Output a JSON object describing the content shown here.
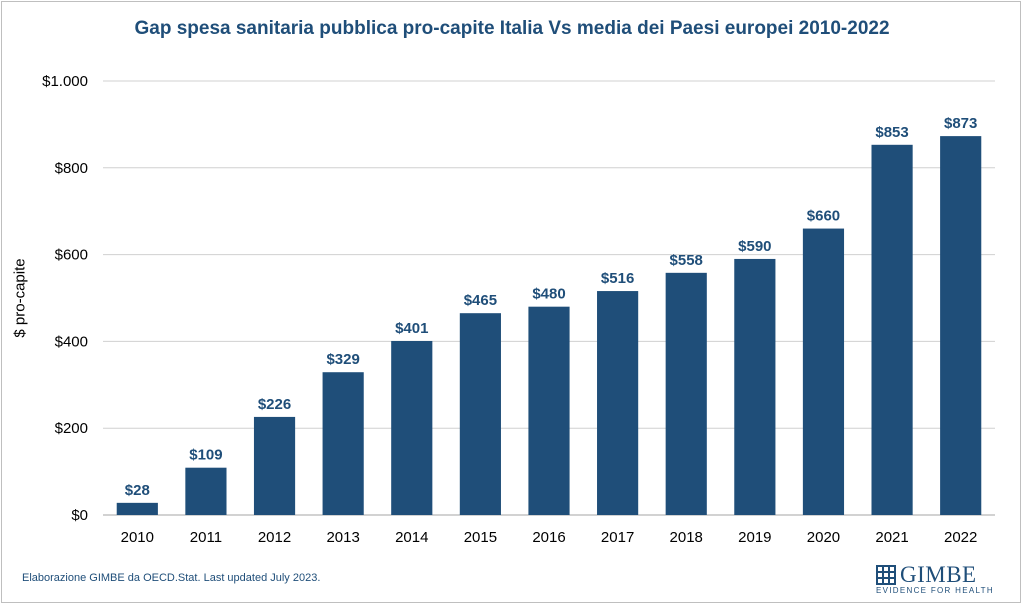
{
  "chart_data": {
    "type": "bar",
    "title": "Gap spesa sanitaria pubblica pro-capite Italia Vs media dei Paesi europei 2010-2022",
    "xlabel": "",
    "ylabel": "$ pro-capite",
    "categories": [
      "2010",
      "2011",
      "2012",
      "2013",
      "2014",
      "2015",
      "2016",
      "2017",
      "2018",
      "2019",
      "2020",
      "2021",
      "2022"
    ],
    "values": [
      28,
      109,
      226,
      329,
      401,
      465,
      480,
      516,
      558,
      590,
      660,
      853,
      873
    ],
    "value_labels": [
      "$28",
      "$109",
      "$226",
      "$329",
      "$401",
      "$465",
      "$480",
      "$516",
      "$558",
      "$590",
      "$660",
      "$853",
      "$873"
    ],
    "ylim": [
      0,
      1000
    ],
    "y_ticks": [
      0,
      200,
      400,
      600,
      800,
      1000
    ],
    "y_tick_labels": [
      "$0",
      "$200",
      "$400",
      "$600",
      "$800",
      "$1.000"
    ],
    "grid": true,
    "legend": "none",
    "bar_color": "#1f4e79",
    "label_color": "#1f4e79"
  },
  "footer": {
    "source": "Elaborazione GIMBE da OECD.Stat. Last updated July 2023.",
    "logo_name": "GIMBE",
    "logo_tagline": "EVIDENCE FOR HEALTH"
  }
}
